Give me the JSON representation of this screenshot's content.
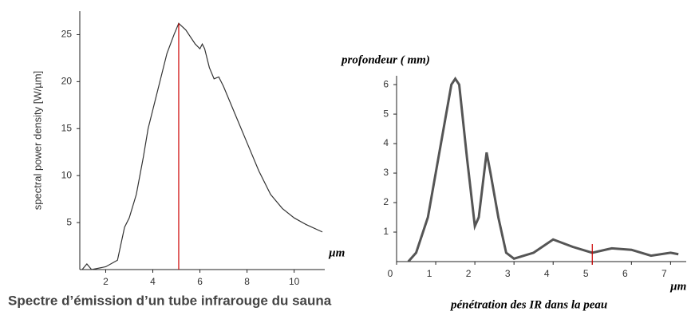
{
  "chart_data": [
    {
      "type": "line",
      "title": "Spectre d’émission d’un tube infrarouge du sauna",
      "y_label": "spectral power density [W/µm]",
      "x_label": "µm",
      "x": [
        1.0,
        1.2,
        1.4,
        2.0,
        2.5,
        2.8,
        3.0,
        3.3,
        3.6,
        3.8,
        4.0,
        4.3,
        4.6,
        4.9,
        5.1,
        5.4,
        5.8,
        6.0,
        6.1,
        6.2,
        6.4,
        6.6,
        6.8,
        7.0,
        7.5,
        8.0,
        8.5,
        9.0,
        9.5,
        10.0,
        10.5,
        11.2
      ],
      "series": [
        {
          "color": "#333333",
          "values": [
            0,
            0.6,
            0,
            0.3,
            1,
            4.5,
            5.5,
            8,
            12,
            15,
            17,
            20,
            23,
            25,
            26.2,
            25.5,
            24,
            23.5,
            24,
            23.5,
            21.5,
            20.3,
            20.5,
            19.5,
            16.5,
            13.5,
            10.5,
            8,
            6.5,
            5.5,
            4.8,
            4
          ]
        }
      ],
      "vline": 5.1,
      "vline_color": "#cc0000",
      "xlim": [
        0.9,
        11.3
      ],
      "ylim": [
        0,
        27.5
      ],
      "xticks": [
        2,
        4,
        6,
        8,
        10
      ],
      "yticks": [
        5,
        10,
        15,
        20,
        25
      ]
    },
    {
      "type": "line",
      "title": "pénétration des IR dans la peau",
      "y_label": "profondeur ( mm)",
      "x_label": "µm",
      "x": [
        0.3,
        0.5,
        0.8,
        1.0,
        1.2,
        1.4,
        1.5,
        1.6,
        1.8,
        2.0,
        2.1,
        2.3,
        2.4,
        2.6,
        2.8,
        3.0,
        3.5,
        4.0,
        4.5,
        5.0,
        5.5,
        6.0,
        6.5,
        7.0,
        7.2
      ],
      "series": [
        {
          "color": "#555555",
          "values": [
            0,
            0.3,
            1.5,
            3,
            4.5,
            6,
            6.2,
            6,
            3.5,
            1.2,
            1.5,
            3.7,
            3,
            1.5,
            0.3,
            0.1,
            0.3,
            0.75,
            0.5,
            0.3,
            0.45,
            0.4,
            0.2,
            0.3,
            0.25
          ]
        }
      ],
      "vline": 5.0,
      "vline_color": "#cc0000",
      "xlim": [
        0,
        7.4
      ],
      "ylim": [
        0,
        6.3
      ],
      "xticks": [
        0,
        1,
        2,
        3,
        4,
        5,
        6,
        7
      ],
      "yticks": [
        1,
        2,
        3,
        4,
        5,
        6
      ]
    }
  ]
}
